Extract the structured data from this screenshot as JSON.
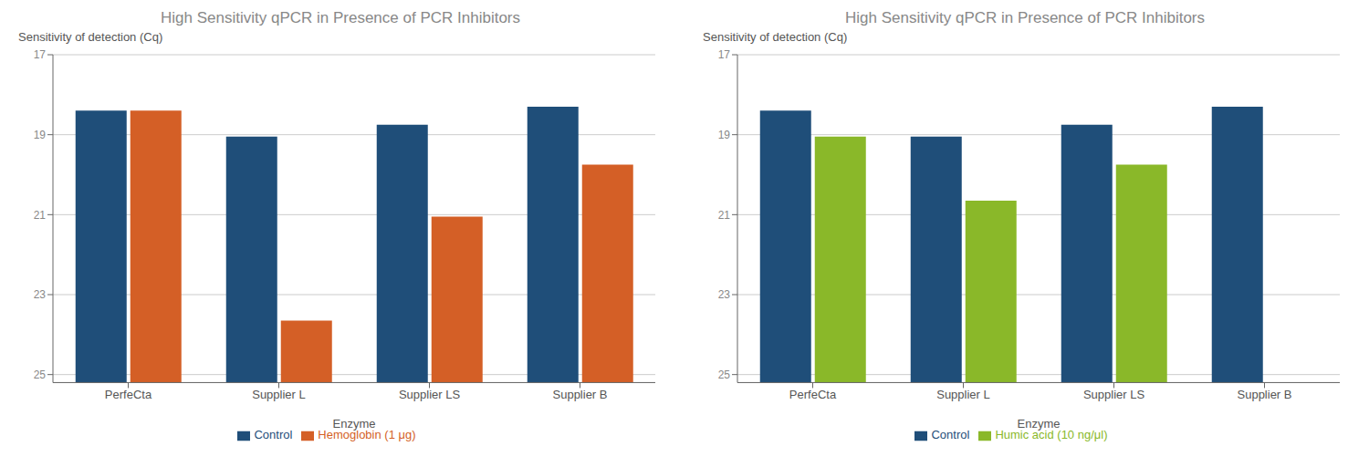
{
  "chart_data": [
    {
      "type": "bar",
      "title": "High Sensitivity qPCR in Presence of PCR Inhibitors",
      "xlabel": "Enzyme",
      "ylabel": "Sensitivity of detection (Cq)",
      "categories": [
        "PerfeCta",
        "Supplier L",
        "Supplier LS",
        "Supplier B"
      ],
      "series": [
        {
          "name": "Control",
          "color": "#1f4e79",
          "values": [
            18.4,
            19.05,
            18.75,
            18.3
          ]
        },
        {
          "name": "Hemoglobin (1 μg)",
          "color": "#d45f26",
          "values": [
            18.4,
            23.65,
            21.05,
            19.75
          ]
        }
      ],
      "ylim": [
        25.2,
        17
      ],
      "yticks": [
        17,
        19,
        21,
        23,
        25
      ],
      "grid": true,
      "legend": "bottom"
    },
    {
      "type": "bar",
      "title": "High Sensitivity qPCR in Presence of PCR Inhibitors",
      "xlabel": "Enzyme",
      "ylabel": "Sensitivity of detection (Cq)",
      "categories": [
        "PerfeCta",
        "Supplier L",
        "Supplier LS",
        "Supplier B"
      ],
      "series": [
        {
          "name": "Control",
          "color": "#1f4e79",
          "values": [
            18.4,
            19.05,
            18.75,
            18.3
          ]
        },
        {
          "name": "Humic acid (10 ng/μl)",
          "color": "#8ab829",
          "values": [
            19.05,
            20.65,
            19.75,
            null
          ]
        }
      ],
      "ylim": [
        25.2,
        17
      ],
      "yticks": [
        17,
        19,
        21,
        23,
        25
      ],
      "grid": true,
      "legend": "bottom"
    }
  ]
}
